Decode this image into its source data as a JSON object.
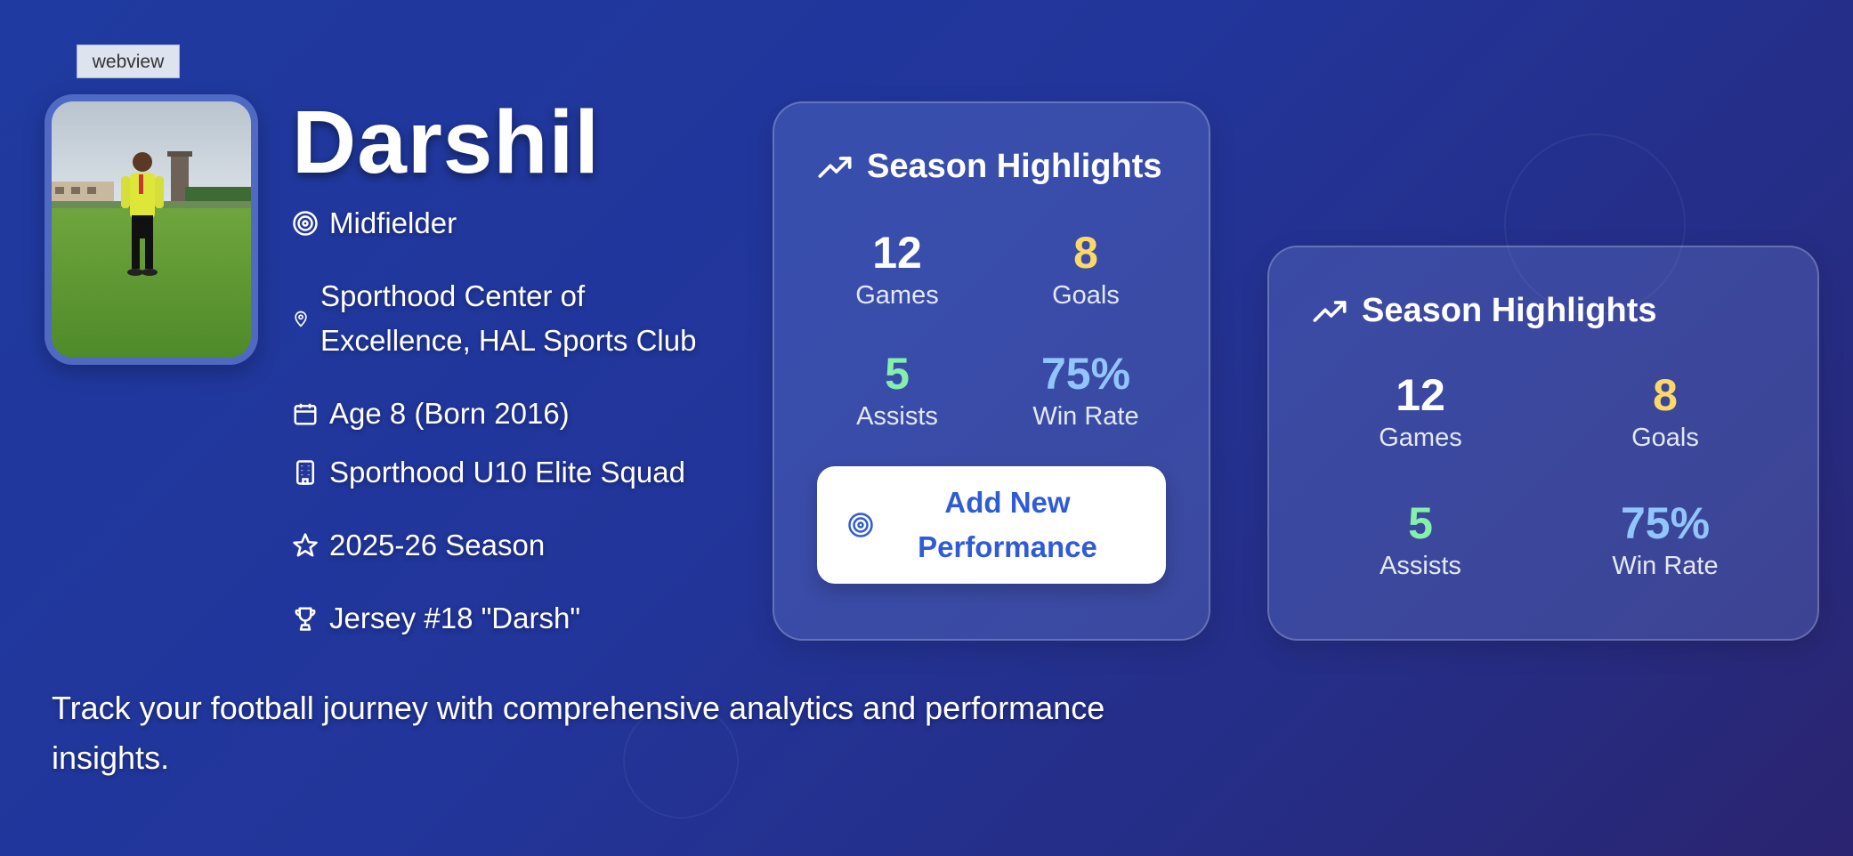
{
  "webview_label": "webview",
  "profile": {
    "name": "Darshil",
    "position": "Midfielder",
    "club_line1": "Sporthood Center of",
    "club_line2": "Excellence, HAL Sports Club",
    "age": "Age 8 (Born 2016)",
    "team": "Sporthood U10 Elite Squad",
    "season": "2025-26 Season",
    "jersey": "Jersey #18 \"Darsh\""
  },
  "highlights_card": {
    "title": "Season Highlights",
    "stats": [
      {
        "value": "12",
        "label": "Games",
        "color": "#ffffff"
      },
      {
        "value": "8",
        "label": "Goals",
        "color": "#fcd967"
      },
      {
        "value": "5",
        "label": "Assists",
        "color": "#86efac"
      },
      {
        "value": "75%",
        "label": "Win Rate",
        "color": "#93c5fd"
      }
    ],
    "button_line1": "Add New",
    "button_line2": "Performance"
  },
  "highlights_card_secondary": {
    "title": "Season Highlights",
    "stats": [
      {
        "value": "12",
        "label": "Games",
        "color": "#ffffff"
      },
      {
        "value": "8",
        "label": "Goals",
        "color": "#fcd967"
      },
      {
        "value": "5",
        "label": "Assists",
        "color": "#86efac"
      },
      {
        "value": "75%",
        "label": "Win Rate",
        "color": "#93c5fd"
      }
    ]
  },
  "tagline": "Track your football journey with comprehensive analytics and performance insights.",
  "icons": {
    "position": "target-icon",
    "club": "map-pin-icon",
    "age": "calendar-icon",
    "team": "building-icon",
    "season": "star-icon",
    "jersey": "trophy-icon",
    "highlights": "trending-up-icon",
    "button": "target-icon"
  },
  "colors": {
    "accent": "#2f5bd6",
    "goals": "#fcd967",
    "assists": "#86efac",
    "win_rate": "#93c5fd"
  }
}
